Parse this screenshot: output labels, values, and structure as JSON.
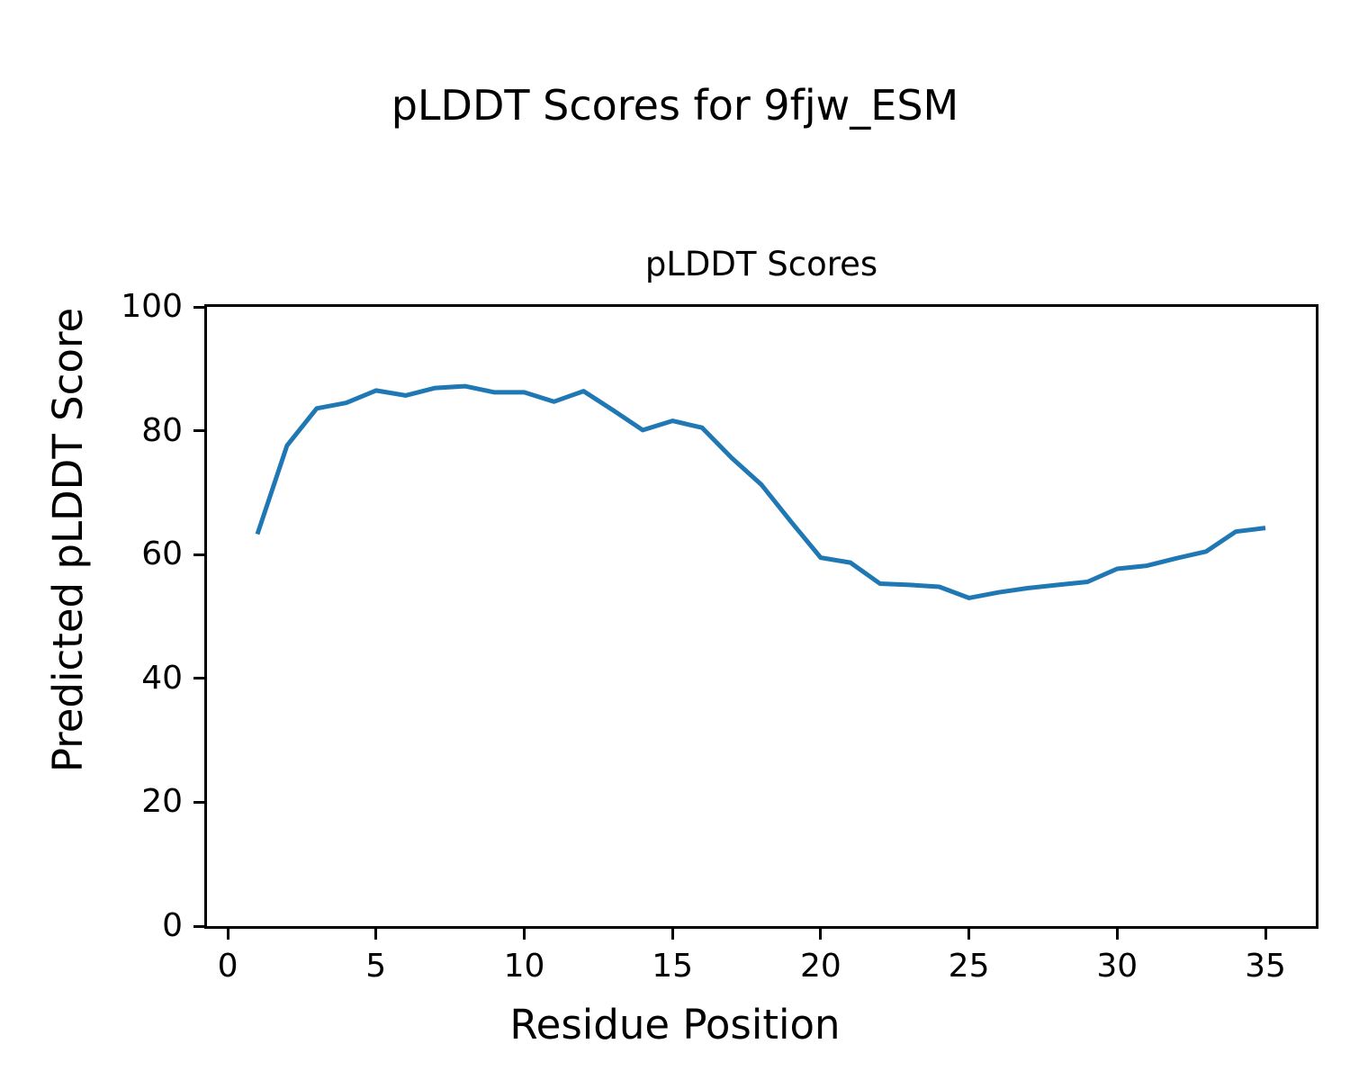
{
  "figure": {
    "suptitle": "pLDDT Scores for 9fjw_ESM"
  },
  "chart_data": {
    "type": "line",
    "suptitle": "pLDDT Scores for 9fjw_ESM",
    "title": "pLDDT Scores",
    "xlabel": "Residue Position",
    "ylabel": "Predicted pLDDT Score",
    "x": [
      1,
      2,
      3,
      4,
      5,
      6,
      7,
      8,
      9,
      10,
      11,
      12,
      13,
      14,
      15,
      16,
      17,
      18,
      19,
      20,
      21,
      22,
      23,
      24,
      25,
      26,
      27,
      28,
      29,
      30,
      31,
      32,
      33,
      34,
      35
    ],
    "y": [
      63.3,
      77.6,
      83.6,
      84.5,
      86.5,
      85.7,
      86.9,
      87.2,
      86.2,
      86.2,
      84.7,
      86.4,
      83.3,
      80.1,
      81.6,
      80.5,
      75.6,
      71.3,
      65.3,
      59.5,
      58.7,
      55.3,
      55.1,
      54.8,
      53.0,
      53.9,
      54.6,
      55.1,
      55.6,
      57.7,
      58.2,
      59.4,
      60.5,
      63.7,
      64.3
    ],
    "xlim": [
      -0.7,
      36.7
    ],
    "ylim": [
      0,
      100
    ],
    "xticks": [
      0,
      5,
      10,
      15,
      20,
      25,
      30,
      35
    ],
    "yticks": [
      0,
      20,
      40,
      60,
      80,
      100
    ],
    "grid": false,
    "legend": null,
    "line_color": "#1f77b4",
    "line_width": 5,
    "axis_color": "#000000",
    "background_color": "#ffffff"
  }
}
